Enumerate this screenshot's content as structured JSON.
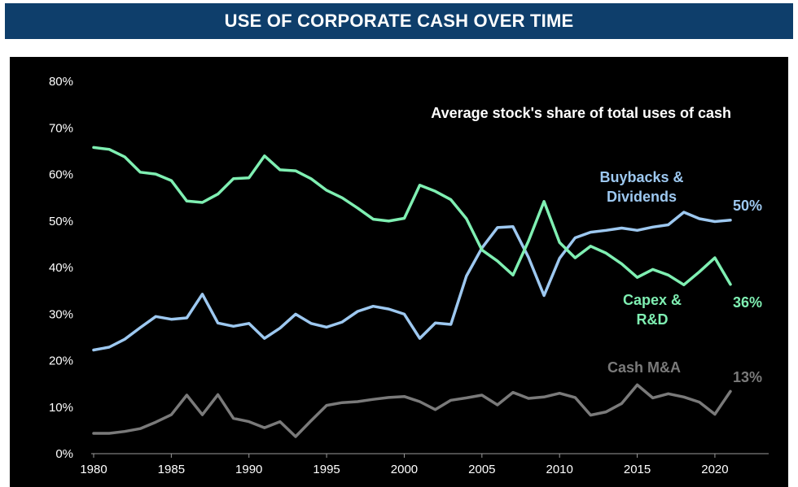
{
  "header": {
    "title": "USE OF CORPORATE CASH OVER TIME"
  },
  "chart_data": {
    "type": "line",
    "title": "Average stock's share of total uses of cash",
    "xlabel": "",
    "ylabel": "",
    "xlim": [
      1980,
      2021
    ],
    "ylim": [
      0,
      80
    ],
    "yticks": [
      "0%",
      "10%",
      "20%",
      "30%",
      "40%",
      "50%",
      "60%",
      "70%",
      "80%"
    ],
    "xticks": [
      "1980",
      "1985",
      "1990",
      "1995",
      "2000",
      "2005",
      "2010",
      "2015",
      "2020"
    ],
    "grid": false,
    "x": [
      1980,
      1981,
      1982,
      1983,
      1984,
      1985,
      1986,
      1987,
      1988,
      1989,
      1990,
      1991,
      1992,
      1993,
      1994,
      1995,
      1996,
      1997,
      1998,
      1999,
      2000,
      2001,
      2002,
      2003,
      2004,
      2005,
      2006,
      2007,
      2008,
      2009,
      2010,
      2011,
      2012,
      2013,
      2014,
      2015,
      2016,
      2017,
      2018,
      2019,
      2020,
      2021
    ],
    "series": [
      {
        "name": "Capex & R&D",
        "label_line1": "Capex &",
        "label_line2": "R&D",
        "end_label": "36%",
        "color": "#7fefb2",
        "values": [
          65.6,
          65.2,
          63.6,
          60.3,
          59.9,
          58.5,
          54.1,
          53.8,
          55.6,
          58.9,
          59.1,
          63.8,
          60.8,
          60.6,
          58.9,
          56.4,
          54.8,
          52.6,
          50.2,
          49.8,
          50.4,
          57.5,
          56.2,
          54.4,
          50.3,
          43.6,
          41.2,
          38.2,
          45.5,
          54.0,
          45.2,
          41.9,
          44.4,
          42.9,
          40.6,
          37.7,
          39.4,
          38.2,
          36.1,
          38.9,
          41.9,
          36.2
        ]
      },
      {
        "name": "Buybacks & Dividends",
        "label_line1": "Buybacks &",
        "label_line2": "Dividends",
        "end_label": "50%",
        "color": "#9dc8f0",
        "values": [
          22.1,
          22.7,
          24.4,
          26.9,
          29.3,
          28.7,
          29.0,
          34.1,
          27.9,
          27.2,
          27.8,
          24.6,
          26.8,
          29.8,
          27.8,
          27.0,
          28.1,
          30.4,
          31.5,
          30.9,
          29.8,
          24.6,
          27.9,
          27.6,
          38.0,
          44.0,
          48.4,
          48.6,
          42.0,
          33.8,
          41.8,
          46.2,
          47.4,
          47.8,
          48.3,
          47.8,
          48.5,
          49.0,
          51.7,
          50.3,
          49.7,
          50.0
        ]
      },
      {
        "name": "Cash M&A",
        "label_line1": "Cash M&A",
        "label_line2": "",
        "end_label": "13%",
        "color": "#7a7a7a",
        "values": [
          4.2,
          4.2,
          4.6,
          5.2,
          6.6,
          8.2,
          12.4,
          8.2,
          12.5,
          7.4,
          6.7,
          5.4,
          6.7,
          3.5,
          6.9,
          10.2,
          10.8,
          11.0,
          11.5,
          11.9,
          12.1,
          11.0,
          9.3,
          11.3,
          11.8,
          12.4,
          10.3,
          13.0,
          11.7,
          12.0,
          12.8,
          11.9,
          8.1,
          8.8,
          10.6,
          14.6,
          11.8,
          12.7,
          12.0,
          10.9,
          8.3,
          13.2
        ]
      }
    ]
  }
}
